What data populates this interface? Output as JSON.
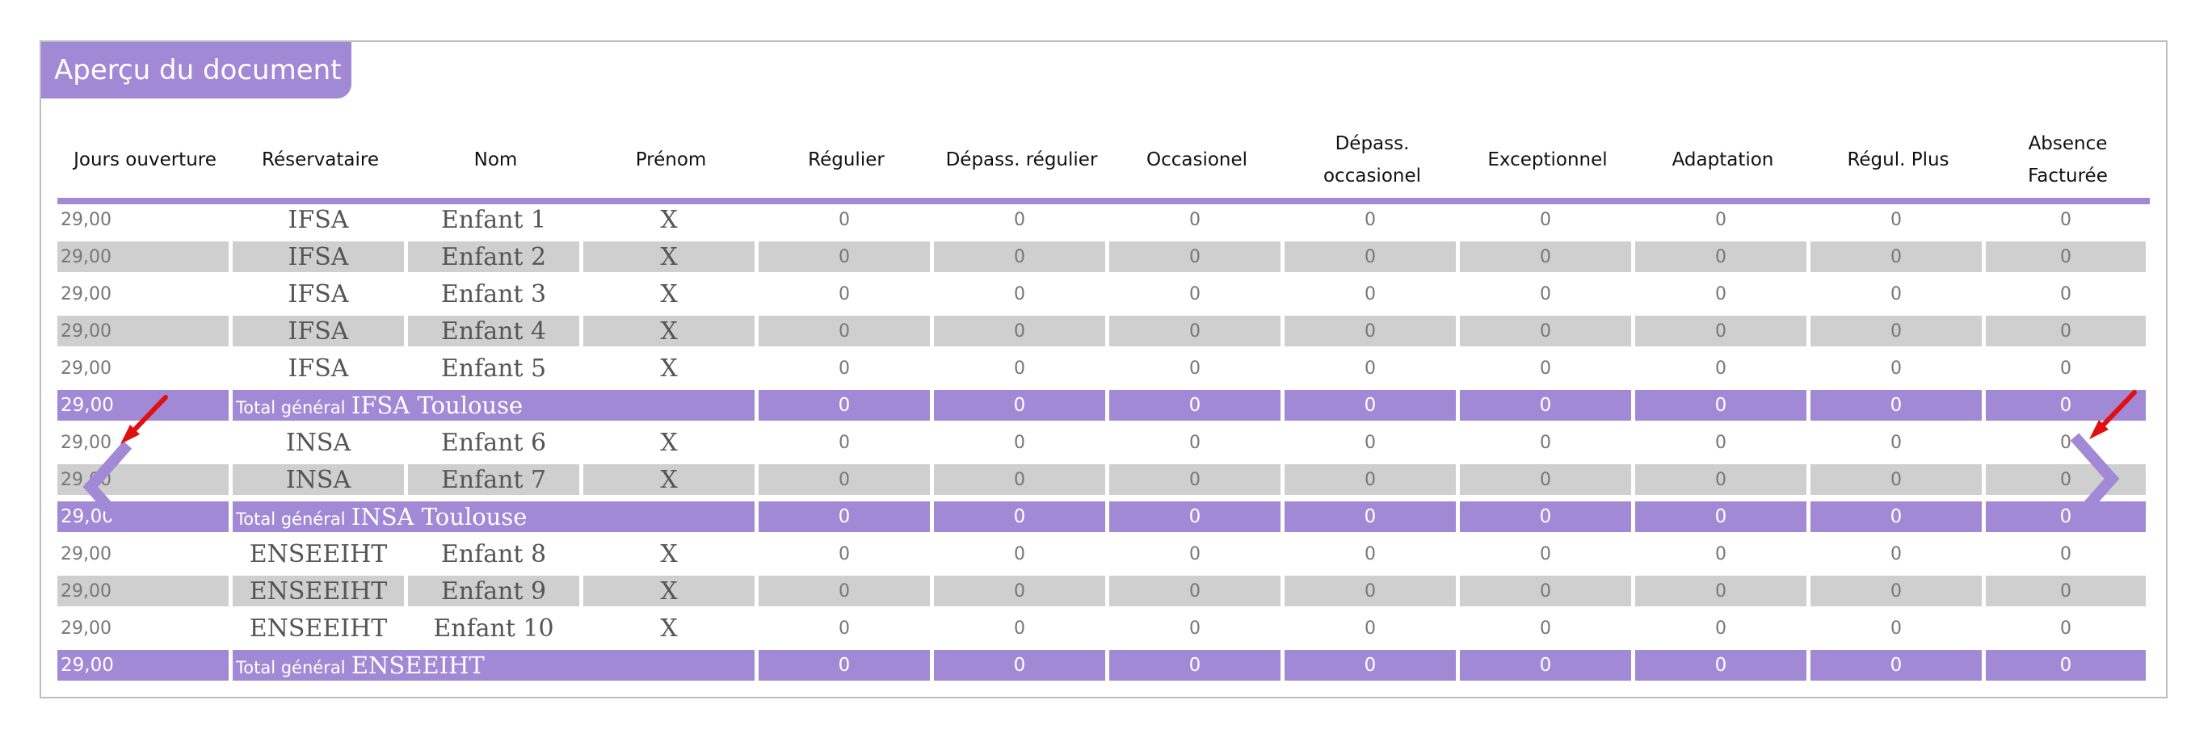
{
  "title": "Aperçu du document",
  "headers": {
    "jours": "Jours ouverture",
    "reservataire": "Réservataire",
    "nom": "Nom",
    "prenom": "Prénom",
    "regulier": "Régulier",
    "depass_regulier": "Dépass. régulier",
    "occasionel": "Occasionel",
    "depass_occasionel": "Dépass. occasionel",
    "exceptionnel": "Exceptionnel",
    "adaptation": "Adaptation",
    "regul_plus": "Régul. Plus",
    "absence": "Absence Facturée"
  },
  "rows": [
    {
      "jours": "29,00",
      "reservataire": "IFSA",
      "nom": "Enfant 1",
      "prenom": "X",
      "values": [
        "0",
        "0",
        "0",
        "0",
        "0",
        "0",
        "0",
        "0"
      ]
    },
    {
      "jours": "29,00",
      "reservataire": "IFSA",
      "nom": "Enfant 2",
      "prenom": "X",
      "values": [
        "0",
        "0",
        "0",
        "0",
        "0",
        "0",
        "0",
        "0"
      ]
    },
    {
      "jours": "29,00",
      "reservataire": "IFSA",
      "nom": "Enfant 3",
      "prenom": "X",
      "values": [
        "0",
        "0",
        "0",
        "0",
        "0",
        "0",
        "0",
        "0"
      ]
    },
    {
      "jours": "29,00",
      "reservataire": "IFSA",
      "nom": "Enfant 4",
      "prenom": "X",
      "values": [
        "0",
        "0",
        "0",
        "0",
        "0",
        "0",
        "0",
        "0"
      ]
    },
    {
      "jours": "29,00",
      "reservataire": "IFSA",
      "nom": "Enfant 5",
      "prenom": "X",
      "values": [
        "0",
        "0",
        "0",
        "0",
        "0",
        "0",
        "0",
        "0"
      ]
    },
    {
      "jours": "29,00",
      "total_prefix": "Total général",
      "total_name": "IFSA Toulouse",
      "values": [
        "0",
        "0",
        "0",
        "0",
        "0",
        "0",
        "0",
        "0"
      ]
    },
    {
      "jours": "29,00",
      "reservataire": "INSA",
      "nom": "Enfant 6",
      "prenom": "X",
      "values": [
        "0",
        "0",
        "0",
        "0",
        "0",
        "0",
        "0",
        "0"
      ]
    },
    {
      "jours": "29,00",
      "reservataire": "INSA",
      "nom": "Enfant 7",
      "prenom": "X",
      "values": [
        "0",
        "0",
        "0",
        "0",
        "0",
        "0",
        "0",
        "0"
      ]
    },
    {
      "jours": "29,00",
      "total_prefix": "Total général",
      "total_name": "INSA Toulouse",
      "values": [
        "0",
        "0",
        "0",
        "0",
        "0",
        "0",
        "0",
        "0"
      ]
    },
    {
      "jours": "29,00",
      "reservataire": "ENSEEIHT",
      "nom": "Enfant 8",
      "prenom": "X",
      "values": [
        "0",
        "0",
        "0",
        "0",
        "0",
        "0",
        "0",
        "0"
      ]
    },
    {
      "jours": "29,00",
      "reservataire": "ENSEEIHT",
      "nom": "Enfant 9",
      "prenom": "X",
      "values": [
        "0",
        "0",
        "0",
        "0",
        "0",
        "0",
        "0",
        "0"
      ]
    },
    {
      "jours": "29,00",
      "reservataire": "ENSEEIHT",
      "nom": "Enfant 10",
      "prenom": "X",
      "values": [
        "0",
        "0",
        "0",
        "0",
        "0",
        "0",
        "0",
        "0"
      ]
    },
    {
      "jours": "29,00",
      "total_prefix": "Total général",
      "total_name": "ENSEEIHT",
      "values": [
        "0",
        "0",
        "0",
        "0",
        "0",
        "0",
        "0",
        "0"
      ]
    }
  ],
  "icons": {
    "prev": "chevron-left-icon",
    "next": "chevron-right-icon",
    "annotation": "red-arrow-icon"
  },
  "colors": {
    "accent": "#a289d6",
    "row_alt": "#cfcfcf",
    "annotation": "#e01010"
  }
}
